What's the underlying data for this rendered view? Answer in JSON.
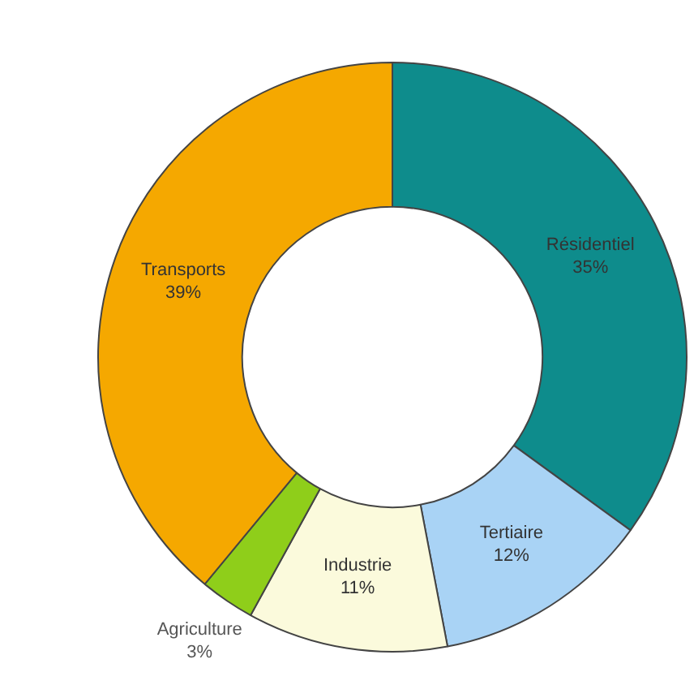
{
  "chart_data": {
    "type": "donut",
    "categories": [
      "Résidentiel",
      "Tertiaire",
      "Industrie",
      "Agriculture",
      "Transports"
    ],
    "values": [
      35,
      12,
      11,
      3,
      39
    ],
    "colors": [
      "#0e8c8c",
      "#a9d3f5",
      "#fbfadc",
      "#8fce1a",
      "#f5a800"
    ],
    "value_labels": [
      "35%",
      "12%",
      "11%",
      "3%",
      "39%"
    ],
    "legend": false
  }
}
